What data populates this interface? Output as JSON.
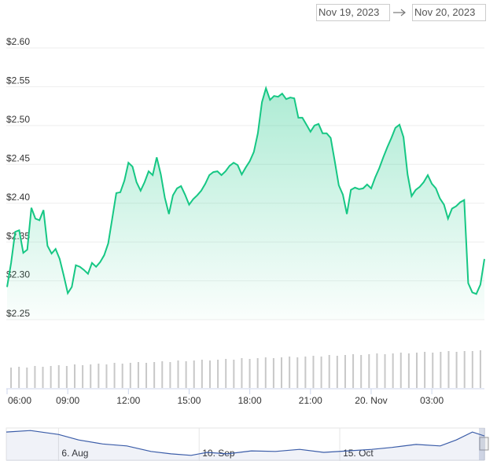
{
  "date_range": {
    "from": "Nov 19, 2023",
    "to": "Nov 20, 2023"
  },
  "chart_data": {
    "type": "line",
    "color": "#16c784",
    "area": true,
    "grid": true,
    "x": [
      6.0,
      6.2,
      6.4,
      6.6,
      6.8,
      7.0,
      7.2,
      7.4,
      7.6,
      7.8,
      8.0,
      8.2,
      8.4,
      8.6,
      8.8,
      9.0,
      9.2,
      9.4,
      9.6,
      9.8,
      10.0,
      10.2,
      10.4,
      10.6,
      10.8,
      11.0,
      11.2,
      11.4,
      11.6,
      11.8,
      12.0,
      12.2,
      12.4,
      12.6,
      12.8,
      13.0,
      13.2,
      13.4,
      13.6,
      13.8,
      14.0,
      14.2,
      14.4,
      14.6,
      14.8,
      15.0,
      15.2,
      15.4,
      15.6,
      15.8,
      16.0,
      16.2,
      16.4,
      16.6,
      16.8,
      17.0,
      17.2,
      17.4,
      17.6,
      17.8,
      18.0,
      18.2,
      18.4,
      18.6,
      18.8,
      19.0,
      19.2,
      19.4,
      19.6,
      19.8,
      20.0,
      20.2,
      20.4,
      20.6,
      20.8,
      21.0,
      21.2,
      21.4,
      21.6,
      21.8,
      22.0,
      22.2,
      22.4,
      22.6,
      22.8,
      23.0,
      23.2,
      23.4,
      23.6,
      23.8,
      24.0,
      24.2,
      24.4,
      24.6,
      24.8,
      25.0,
      25.2,
      25.4,
      25.6,
      25.8,
      26.0,
      26.2,
      26.4,
      26.6,
      26.8,
      27.0,
      27.2,
      27.4,
      27.6,
      27.8,
      28.0,
      28.2,
      28.4,
      28.6,
      28.8,
      29.0,
      29.2,
      29.4,
      29.6
    ],
    "values": [
      2.285,
      2.316,
      2.356,
      2.358,
      2.329,
      2.333,
      2.387,
      2.373,
      2.371,
      2.384,
      2.338,
      2.328,
      2.334,
      2.321,
      2.3,
      2.277,
      2.285,
      2.313,
      2.311,
      2.307,
      2.302,
      2.316,
      2.311,
      2.317,
      2.326,
      2.341,
      2.373,
      2.406,
      2.407,
      2.422,
      2.445,
      2.44,
      2.42,
      2.409,
      2.42,
      2.434,
      2.429,
      2.452,
      2.43,
      2.4,
      2.379,
      2.403,
      2.412,
      2.415,
      2.404,
      2.391,
      2.398,
      2.403,
      2.409,
      2.418,
      2.429,
      2.433,
      2.434,
      2.429,
      2.434,
      2.441,
      2.445,
      2.442,
      2.43,
      2.439,
      2.447,
      2.459,
      2.483,
      2.523,
      2.541,
      2.526,
      2.531,
      2.53,
      2.534,
      2.527,
      2.529,
      2.528,
      2.503,
      2.503,
      2.494,
      2.485,
      2.493,
      2.495,
      2.483,
      2.483,
      2.477,
      2.447,
      2.416,
      2.404,
      2.379,
      2.41,
      2.413,
      2.411,
      2.412,
      2.417,
      2.412,
      2.426,
      2.438,
      2.452,
      2.465,
      2.477,
      2.49,
      2.494,
      2.478,
      2.43,
      2.402,
      2.41,
      2.414,
      2.42,
      2.429,
      2.418,
      2.412,
      2.399,
      2.391,
      2.373,
      2.386,
      2.389,
      2.394,
      2.397,
      2.29,
      2.278,
      2.276,
      2.288,
      2.321
    ],
    "xlim": [
      6.0,
      29.6
    ],
    "xticks": [
      {
        "value": 6,
        "label": "06:00"
      },
      {
        "value": 9,
        "label": "09:00"
      },
      {
        "value": 12,
        "label": "12:00"
      },
      {
        "value": 15,
        "label": "15:00"
      },
      {
        "value": 18,
        "label": "18:00"
      },
      {
        "value": 21,
        "label": "21:00"
      },
      {
        "value": 24,
        "label": "20. Nov"
      },
      {
        "value": 27,
        "label": "03:00"
      }
    ],
    "ylim": [
      2.25,
      2.6
    ],
    "yticks": [
      {
        "value": 2.25,
        "label": "$2.25"
      },
      {
        "value": 2.3,
        "label": "$2.30"
      },
      {
        "value": 2.35,
        "label": "$2.35"
      },
      {
        "value": 2.4,
        "label": "$2.40"
      },
      {
        "value": 2.45,
        "label": "$2.45"
      },
      {
        "value": 2.5,
        "label": "$2.50"
      },
      {
        "value": 2.55,
        "label": "$2.55"
      },
      {
        "value": 2.6,
        "label": "$2.60"
      }
    ],
    "volume": {
      "color": "#c8c8c8",
      "ylim": [
        0,
        60
      ],
      "values": [
        26,
        27,
        26,
        28,
        27,
        28,
        29,
        28,
        30,
        29,
        30,
        31,
        30,
        32,
        31,
        32,
        33,
        32,
        33,
        34,
        33,
        35,
        34,
        35,
        36,
        35,
        36,
        37,
        36,
        38,
        37,
        38,
        39,
        38,
        39,
        40,
        39,
        40,
        41,
        40,
        42,
        41,
        42,
        43,
        42,
        43,
        44,
        43,
        44,
        45,
        44,
        45,
        46,
        45,
        46,
        47,
        46,
        47,
        47,
        48
      ]
    },
    "navigator": {
      "color": "#3a5ca8",
      "x": [
        205,
        211,
        218,
        223,
        229,
        235,
        241,
        246,
        251,
        255,
        260,
        266,
        272,
        278,
        284,
        290,
        296,
        301,
        307,
        313,
        317,
        321,
        324
      ],
      "values": [
        2.52,
        2.55,
        2.47,
        2.36,
        2.28,
        2.24,
        2.13,
        2.08,
        2.05,
        2.11,
        2.08,
        2.14,
        2.13,
        2.17,
        2.11,
        2.14,
        2.17,
        2.21,
        2.27,
        2.24,
        2.36,
        2.52,
        2.44
      ],
      "xlim": [
        205,
        324
      ],
      "ylim": [
        2.0,
        2.6
      ],
      "xticks": [
        {
          "value": 218,
          "label": "6. Aug"
        },
        {
          "value": 253,
          "label": "10. Sep"
        },
        {
          "value": 288,
          "label": "15. Oct"
        }
      ]
    }
  }
}
